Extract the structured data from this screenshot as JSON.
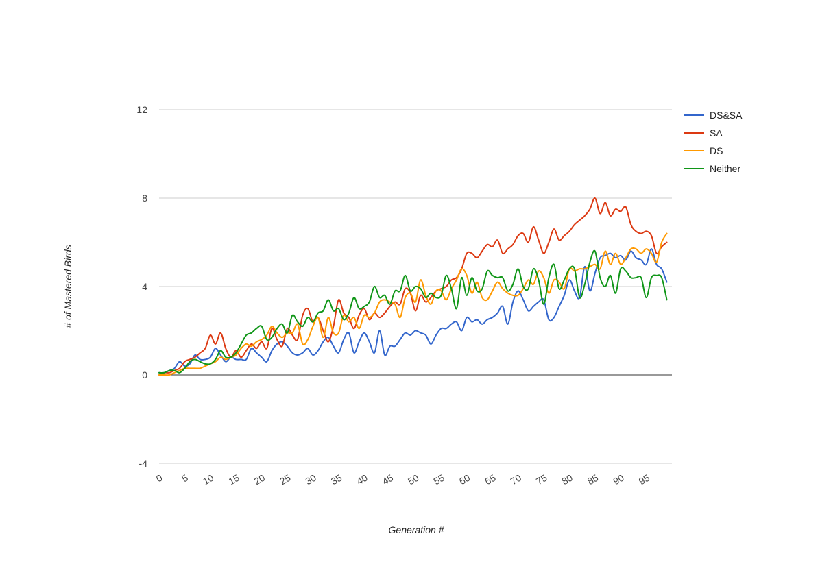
{
  "chart_data": {
    "type": "line",
    "title": "",
    "xlabel": "Generation #",
    "ylabel": "# of Mastered Birds",
    "xlim": [
      0,
      100
    ],
    "ylim": [
      -4,
      12
    ],
    "yticks": [
      -4,
      0,
      4,
      8,
      12
    ],
    "xticks": [
      0,
      5,
      10,
      15,
      20,
      25,
      30,
      35,
      40,
      45,
      50,
      55,
      60,
      65,
      70,
      75,
      80,
      85,
      90,
      95
    ],
    "grid": true,
    "legend_position": "right",
    "x_start": 0,
    "x_step": 1,
    "series": [
      {
        "name": "DS&SA",
        "color": "#3366cc",
        "values": [
          0.1,
          0.1,
          0.2,
          0.3,
          0.6,
          0.4,
          0.5,
          0.9,
          0.7,
          0.7,
          0.8,
          1.2,
          0.9,
          0.6,
          0.8,
          0.7,
          0.7,
          0.7,
          1.2,
          1.0,
          0.8,
          0.6,
          1.1,
          1.4,
          1.5,
          1.3,
          1.0,
          0.9,
          1.0,
          1.2,
          0.9,
          1.1,
          1.5,
          1.7,
          1.3,
          1.0,
          1.6,
          1.9,
          1.0,
          1.5,
          1.9,
          1.5,
          1.0,
          2.0,
          0.9,
          1.3,
          1.3,
          1.6,
          1.9,
          1.8,
          2.0,
          1.9,
          1.8,
          1.4,
          1.8,
          2.1,
          2.1,
          2.3,
          2.4,
          2.0,
          2.6,
          2.4,
          2.5,
          2.3,
          2.5,
          2.6,
          2.8,
          3.1,
          2.3,
          3.3,
          3.8,
          3.4,
          2.9,
          3.1,
          3.3,
          3.4,
          2.5,
          2.6,
          3.1,
          3.6,
          4.3,
          3.8,
          3.5,
          4.9,
          3.8,
          4.6,
          5.3,
          5.4,
          5.5,
          5.3,
          5.4,
          5.2,
          5.6,
          5.3,
          5.2,
          5.0,
          5.7,
          5.0,
          4.8,
          4.2
        ]
      },
      {
        "name": "SA",
        "color": "#dc3912",
        "values": [
          0.0,
          0.1,
          0.1,
          0.2,
          0.3,
          0.6,
          0.7,
          0.8,
          1.0,
          1.2,
          1.8,
          1.4,
          1.9,
          1.2,
          0.8,
          1.1,
          0.8,
          1.1,
          1.4,
          1.2,
          1.5,
          1.2,
          2.1,
          1.6,
          1.3,
          2.1,
          1.8,
          1.6,
          2.7,
          3.0,
          2.4,
          2.6,
          2.0,
          1.5,
          2.2,
          3.4,
          2.8,
          2.6,
          2.1,
          2.7,
          3.0,
          2.5,
          2.8,
          2.6,
          2.8,
          3.1,
          3.3,
          3.2,
          3.9,
          3.7,
          2.9,
          3.6,
          3.3,
          3.5,
          3.8,
          3.9,
          4.0,
          4.3,
          4.4,
          4.8,
          5.5,
          5.5,
          5.3,
          5.6,
          5.9,
          5.8,
          6.1,
          5.5,
          5.7,
          5.9,
          6.3,
          6.4,
          6.0,
          6.7,
          6.1,
          5.5,
          6.0,
          6.6,
          6.1,
          6.3,
          6.5,
          6.8,
          7.0,
          7.2,
          7.5,
          8.0,
          7.3,
          7.8,
          7.2,
          7.5,
          7.4,
          7.6,
          6.8,
          6.5,
          6.4,
          6.5,
          6.3,
          5.5,
          5.8,
          6.0
        ]
      },
      {
        "name": "DS",
        "color": "#ff9900",
        "values": [
          0.0,
          0.0,
          0.0,
          0.1,
          0.2,
          0.3,
          0.3,
          0.3,
          0.3,
          0.4,
          0.5,
          0.6,
          0.8,
          0.7,
          0.8,
          0.9,
          1.2,
          1.4,
          1.3,
          1.5,
          1.6,
          1.8,
          2.2,
          1.9,
          1.7,
          1.9,
          1.9,
          2.3,
          1.4,
          1.6,
          2.2,
          2.6,
          1.7,
          2.6,
          1.9,
          1.9,
          2.7,
          2.4,
          2.6,
          2.1,
          2.7,
          2.6,
          2.8,
          3.3,
          3.4,
          3.3,
          3.2,
          2.6,
          3.5,
          3.7,
          3.3,
          4.3,
          3.6,
          3.2,
          3.8,
          3.8,
          3.4,
          3.9,
          4.3,
          4.8,
          4.5,
          3.7,
          4.2,
          3.5,
          3.4,
          3.8,
          4.2,
          3.9,
          3.7,
          3.6,
          3.6,
          3.9,
          4.3,
          4.1,
          4.7,
          4.4,
          3.7,
          4.3,
          4.2,
          3.9,
          4.8,
          4.7,
          4.8,
          4.8,
          4.9,
          5.0,
          4.8,
          5.6,
          5.0,
          5.5,
          5.0,
          5.3,
          5.7,
          5.7,
          5.5,
          5.7,
          5.5,
          5.1,
          6.0,
          6.4
        ]
      },
      {
        "name": "Neither",
        "color": "#109618",
        "values": [
          0.1,
          0.1,
          0.2,
          0.2,
          0.1,
          0.3,
          0.6,
          0.7,
          0.6,
          0.5,
          0.5,
          0.7,
          1.1,
          0.8,
          0.8,
          1.0,
          1.4,
          1.8,
          1.9,
          2.1,
          2.2,
          1.6,
          1.7,
          2.1,
          2.3,
          1.9,
          2.7,
          2.4,
          2.2,
          2.6,
          2.4,
          2.8,
          2.9,
          3.4,
          2.9,
          3.0,
          2.5,
          2.8,
          3.5,
          3.0,
          3.1,
          3.3,
          4.0,
          3.5,
          3.6,
          3.2,
          3.8,
          3.8,
          4.5,
          3.8,
          4.0,
          3.9,
          3.5,
          3.7,
          3.5,
          3.6,
          4.5,
          3.9,
          3.0,
          4.4,
          3.6,
          4.4,
          3.8,
          3.9,
          4.7,
          4.5,
          4.4,
          4.4,
          3.8,
          4.1,
          4.8,
          4.0,
          3.9,
          4.8,
          4.3,
          3.2,
          4.4,
          5.0,
          3.9,
          4.3,
          4.8,
          4.8,
          3.5,
          4.1,
          5.1,
          5.6,
          4.4,
          4.0,
          4.5,
          3.7,
          4.8,
          4.7,
          4.4,
          4.4,
          4.4,
          3.5,
          4.4,
          4.5,
          4.4,
          3.4
        ]
      }
    ]
  }
}
